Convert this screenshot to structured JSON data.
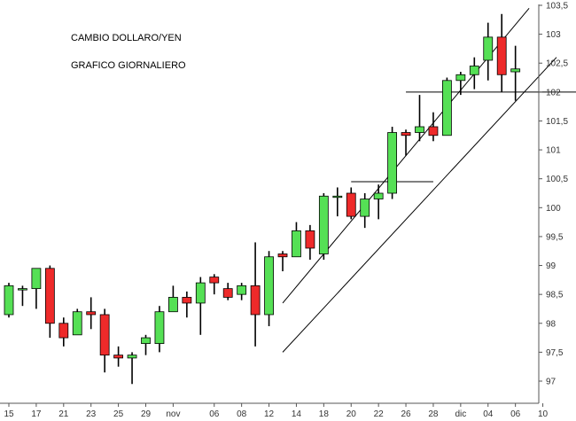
{
  "chart_data": {
    "type": "candlestick",
    "title": "CAMBIO DOLLARO/YEN",
    "subtitle": "GRAFICO GIORNALIERO",
    "ylim": [
      96.5,
      103.5
    ],
    "yticks": [
      "97",
      "97,5",
      "98",
      "98,5",
      "99",
      "99,5",
      "100",
      "100,5",
      "101",
      "101,5",
      "102",
      "102,5",
      "103",
      "103,5"
    ],
    "ytick_values": [
      97,
      97.5,
      98,
      98.5,
      99,
      99.5,
      100,
      100.5,
      101,
      101.5,
      102,
      102.5,
      103,
      103.5
    ],
    "xticks": [
      {
        "label": "15",
        "index": 0
      },
      {
        "label": "17",
        "index": 2
      },
      {
        "label": "21",
        "index": 4
      },
      {
        "label": "23",
        "index": 6
      },
      {
        "label": "25",
        "index": 8
      },
      {
        "label": "29",
        "index": 10
      },
      {
        "label": "nov",
        "index": 12
      },
      {
        "label": "06",
        "index": 15
      },
      {
        "label": "08",
        "index": 17
      },
      {
        "label": "12",
        "index": 19
      },
      {
        "label": "14",
        "index": 21
      },
      {
        "label": "18",
        "index": 23
      },
      {
        "label": "20",
        "index": 25
      },
      {
        "label": "22",
        "index": 27
      },
      {
        "label": "26",
        "index": 29
      },
      {
        "label": "28",
        "index": 31
      },
      {
        "label": "dic",
        "index": 33
      },
      {
        "label": "04",
        "index": 35
      },
      {
        "label": "06",
        "index": 37
      },
      {
        "label": "10",
        "index": 39
      }
    ],
    "candles": [
      {
        "o": 98.15,
        "h": 98.7,
        "l": 98.1,
        "c": 98.65
      },
      {
        "o": 98.6,
        "h": 98.65,
        "l": 98.3,
        "c": 98.6
      },
      {
        "o": 98.6,
        "h": 98.95,
        "l": 98.25,
        "c": 98.95
      },
      {
        "o": 98.95,
        "h": 99.0,
        "l": 97.75,
        "c": 98.0
      },
      {
        "o": 98.0,
        "h": 98.1,
        "l": 97.6,
        "c": 97.75
      },
      {
        "o": 97.8,
        "h": 98.25,
        "l": 97.8,
        "c": 98.2
      },
      {
        "o": 98.2,
        "h": 98.45,
        "l": 97.9,
        "c": 98.15
      },
      {
        "o": 98.15,
        "h": 98.25,
        "l": 97.15,
        "c": 97.45
      },
      {
        "o": 97.45,
        "h": 97.6,
        "l": 97.25,
        "c": 97.4
      },
      {
        "o": 97.4,
        "h": 97.5,
        "l": 96.95,
        "c": 97.45
      },
      {
        "o": 97.65,
        "h": 97.8,
        "l": 97.45,
        "c": 97.75
      },
      {
        "o": 97.65,
        "h": 98.3,
        "l": 97.5,
        "c": 98.2
      },
      {
        "o": 98.2,
        "h": 98.65,
        "l": 98.2,
        "c": 98.45
      },
      {
        "o": 98.45,
        "h": 98.55,
        "l": 98.1,
        "c": 98.35
      },
      {
        "o": 98.35,
        "h": 98.8,
        "l": 97.8,
        "c": 98.7
      },
      {
        "o": 98.8,
        "h": 98.85,
        "l": 98.5,
        "c": 98.7
      },
      {
        "o": 98.6,
        "h": 98.7,
        "l": 98.4,
        "c": 98.45
      },
      {
        "o": 98.5,
        "h": 98.7,
        "l": 98.4,
        "c": 98.65
      },
      {
        "o": 98.65,
        "h": 99.4,
        "l": 97.6,
        "c": 98.15
      },
      {
        "o": 98.15,
        "h": 99.25,
        "l": 97.95,
        "c": 99.15
      },
      {
        "o": 99.2,
        "h": 99.25,
        "l": 98.9,
        "c": 99.15
      },
      {
        "o": 99.15,
        "h": 99.75,
        "l": 99.15,
        "c": 99.6
      },
      {
        "o": 99.6,
        "h": 99.7,
        "l": 99.1,
        "c": 99.3
      },
      {
        "o": 99.2,
        "h": 100.25,
        "l": 99.1,
        "c": 100.2
      },
      {
        "o": 100.2,
        "h": 100.35,
        "l": 99.85,
        "c": 100.2
      },
      {
        "o": 100.25,
        "h": 100.35,
        "l": 99.8,
        "c": 99.85
      },
      {
        "o": 99.85,
        "h": 100.25,
        "l": 99.65,
        "c": 100.15
      },
      {
        "o": 100.15,
        "h": 100.4,
        "l": 99.8,
        "c": 100.25
      },
      {
        "o": 100.25,
        "h": 101.4,
        "l": 100.15,
        "c": 101.3
      },
      {
        "o": 101.3,
        "h": 101.35,
        "l": 100.9,
        "c": 101.25
      },
      {
        "o": 101.3,
        "h": 101.95,
        "l": 101.15,
        "c": 101.4
      },
      {
        "o": 101.4,
        "h": 101.65,
        "l": 101.15,
        "c": 101.25
      },
      {
        "o": 101.25,
        "h": 102.25,
        "l": 101.25,
        "c": 102.2
      },
      {
        "o": 102.2,
        "h": 102.35,
        "l": 101.95,
        "c": 102.3
      },
      {
        "o": 102.3,
        "h": 102.6,
        "l": 102.05,
        "c": 102.45
      },
      {
        "o": 102.55,
        "h": 103.2,
        "l": 102.2,
        "c": 102.95
      },
      {
        "o": 102.95,
        "h": 103.35,
        "l": 102.0,
        "c": 102.3
      },
      {
        "o": 102.35,
        "h": 102.8,
        "l": 101.85,
        "c": 102.4
      }
    ],
    "colors": {
      "up": "#55e055",
      "down": "#ee2a2a",
      "line": "#000000",
      "axis": "#555555"
    },
    "lines": [
      {
        "x1": 20,
        "y1": 98.35,
        "x2": 38,
        "y2": 103.45
      },
      {
        "x1": 20,
        "y1": 97.5,
        "x2": 40,
        "y2": 102.6
      },
      {
        "x1": 29,
        "y1": 102.0,
        "x2": 43,
        "y2": 102.0
      },
      {
        "x1": 25,
        "y1": 100.45,
        "x2": 31,
        "y2": 100.45
      }
    ],
    "grid": false
  }
}
